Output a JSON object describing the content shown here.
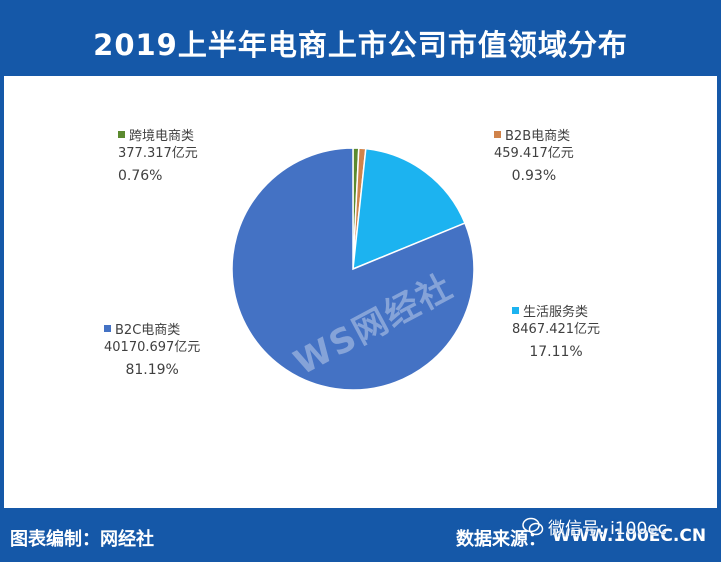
{
  "header": {
    "title": "2019上半年电商上市公司市值领域分布"
  },
  "footer": {
    "left": "图表编制：网经社",
    "source_label": "数据来源：",
    "source_url": "WWW.100EC.CN",
    "wechat": "微信号: i100ec"
  },
  "watermark": "WS网经社",
  "colors": {
    "b2c": "#4472c4",
    "life": "#1cb3f0",
    "b2b": "#d0834a",
    "cross": "#5b8a2f",
    "header_bg": "#1558a8"
  },
  "chart_data": {
    "type": "pie",
    "title": "2019上半年电商上市公司市值领域分布",
    "unit": "亿元",
    "slices": [
      {
        "name": "跨境电商类",
        "value": 377.317,
        "value_label": "377.317亿元",
        "percent_label": "0.76%",
        "color": "#5b8a2f"
      },
      {
        "name": "B2B电商类",
        "value": 459.417,
        "value_label": "459.417亿元",
        "percent_label": "0.93%",
        "color": "#d0834a"
      },
      {
        "name": "生活服务类",
        "value": 8467.421,
        "value_label": "8467.421亿元",
        "percent_label": "17.11%",
        "color": "#1cb3f0"
      },
      {
        "name": "B2C电商类",
        "value": 40170.697,
        "value_label": "40170.697亿元",
        "percent_label": "81.19%",
        "color": "#4472c4"
      }
    ]
  }
}
